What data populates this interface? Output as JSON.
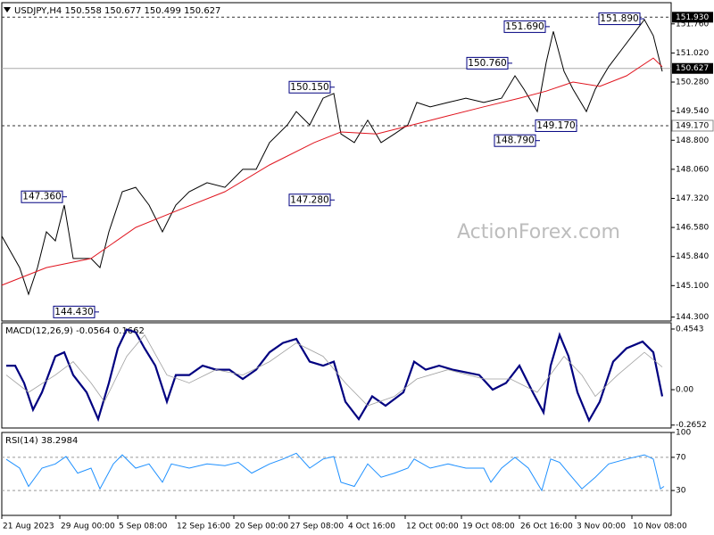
{
  "chart_data": [
    {
      "type": "line",
      "title": "USDJPY,H4  150.558 150.677 150.499 150.627",
      "watermark": "ActionForex.com",
      "xlim": [
        0,
        150
      ],
      "ylim": [
        144.2,
        152.3
      ],
      "yticks": [
        {
          "value": 151.76,
          "label": "151.760"
        },
        {
          "value": 151.02,
          "label": "151.020"
        },
        {
          "value": 150.28,
          "label": "150.280"
        },
        {
          "value": 149.54,
          "label": "149.540"
        },
        {
          "value": 148.8,
          "label": "148.800"
        },
        {
          "value": 148.06,
          "label": "148.060"
        },
        {
          "value": 147.32,
          "label": "147.320"
        },
        {
          "value": 146.58,
          "label": "146.580"
        },
        {
          "value": 145.84,
          "label": "145.840"
        },
        {
          "value": 145.1,
          "label": "145.100"
        },
        {
          "value": 144.3,
          "label": "144.300"
        }
      ],
      "series": [
        {
          "color": "#000000",
          "style": "solid",
          "x": [
            0,
            4,
            6,
            8,
            10,
            12,
            14,
            16,
            20,
            22,
            24,
            27,
            30,
            33,
            36,
            39,
            42,
            46,
            50,
            54,
            57,
            60,
            64,
            66,
            69,
            72,
            74.4,
            76,
            79,
            82,
            85,
            88,
            91,
            93,
            96,
            100,
            104,
            108,
            112,
            115,
            117,
            120,
            122,
            123.6,
            126,
            128,
            131,
            133,
            136,
            139,
            142,
            144,
            146,
            148
          ],
          "values": [
            146.36,
            145.56,
            144.88,
            145.56,
            146.47,
            146.24,
            147.15,
            145.79,
            145.79,
            145.56,
            146.47,
            147.49,
            147.6,
            147.15,
            146.47,
            147.15,
            147.49,
            147.72,
            147.6,
            148.06,
            148.06,
            148.74,
            149.19,
            149.53,
            149.19,
            149.87,
            149.99,
            148.96,
            148.74,
            149.31,
            148.74,
            148.96,
            149.19,
            149.76,
            149.65,
            149.76,
            149.87,
            149.76,
            149.87,
            150.44,
            150.1,
            149.53,
            150.78,
            151.57,
            150.55,
            150.1,
            149.53,
            150.1,
            150.67,
            151.12,
            151.57,
            151.87,
            151.46,
            150.55
          ]
        },
        {
          "color": "#e0141e",
          "style": "solid",
          "x": [
            0,
            10,
            20,
            30,
            40,
            50,
            60,
            70,
            76,
            84,
            92,
            100,
            108,
            116,
            122,
            128,
            134,
            140,
            146,
            148
          ],
          "values": [
            145.11,
            145.56,
            145.79,
            146.58,
            147.04,
            147.49,
            148.17,
            148.74,
            149.01,
            148.96,
            149.19,
            149.42,
            149.65,
            149.87,
            150.05,
            150.28,
            150.17,
            150.44,
            150.89,
            150.67
          ]
        }
      ],
      "annotations": [
        {
          "x": 14.6,
          "value": 147.36,
          "label": "147.360"
        },
        {
          "x": 21.8,
          "value": 144.43,
          "label": "144.430"
        },
        {
          "x": 74.6,
          "value": 150.15,
          "label": "150.150"
        },
        {
          "x": 74.6,
          "value": 147.28,
          "label": "147.280"
        },
        {
          "x": 114.4,
          "value": 150.76,
          "label": "150.760"
        },
        {
          "x": 122.8,
          "value": 151.69,
          "label": "151.690"
        },
        {
          "x": 120.6,
          "value": 148.79,
          "label": "148.790"
        },
        {
          "x": 119.6,
          "value": 149.17,
          "label": "149.170"
        },
        {
          "x": 144,
          "value": 151.89,
          "label": "151.890"
        }
      ],
      "markers": [
        {
          "value": 151.93,
          "label": "151.930",
          "line": "dashed",
          "style": "dark"
        },
        {
          "value": 150.627,
          "label": "150.627",
          "line": "solid",
          "style": "dark"
        },
        {
          "value": 149.17,
          "label": "149.170",
          "line": "dashed",
          "style": "light"
        }
      ]
    },
    {
      "type": "line",
      "title": "MACD(12,26,9) -0.0564 0.1662",
      "xlim": [
        0,
        150
      ],
      "ylim": [
        -0.287,
        0.501
      ],
      "yticks": [
        0.4543,
        {
          "value": 0,
          "label": "0.00"
        },
        -0.2652
      ],
      "series": [
        {
          "color": "#000080",
          "style": "thick",
          "x": [
            1,
            3,
            5,
            7,
            9,
            12,
            14,
            16,
            19,
            21.6,
            24,
            26,
            28,
            30,
            32,
            34.4,
            37,
            39,
            42,
            45,
            48,
            51,
            54,
            57,
            60,
            63,
            66,
            69,
            72,
            74.4,
            77,
            80,
            83,
            86,
            90,
            92.4,
            95,
            98,
            101,
            104,
            107,
            110,
            113,
            116,
            119,
            121.4,
            123,
            125,
            127,
            129,
            131.6,
            134,
            137,
            140,
            143.6,
            146,
            148
          ],
          "values": [
            0.18,
            0.18,
            0.05,
            -0.15,
            -0.02,
            0.25,
            0.28,
            0.11,
            -0.02,
            -0.22,
            0.05,
            0.31,
            0.45,
            0.43,
            0.31,
            0.18,
            -0.09,
            0.11,
            0.11,
            0.18,
            0.15,
            0.15,
            0.08,
            0.15,
            0.28,
            0.35,
            0.38,
            0.21,
            0.18,
            0.21,
            -0.09,
            -0.22,
            -0.05,
            -0.12,
            -0.02,
            0.21,
            0.15,
            0.18,
            0.15,
            0.13,
            0.11,
            0,
            0.05,
            0.18,
            -0.02,
            -0.17,
            0.18,
            0.41,
            0.25,
            -0.02,
            -0.23,
            -0.09,
            0.21,
            0.31,
            0.36,
            0.28,
            -0.05
          ]
        },
        {
          "color": "#a0a0a0",
          "style": "thin",
          "x": [
            1,
            6,
            12,
            16,
            20,
            23,
            28,
            32,
            37,
            42,
            48,
            54,
            60,
            66,
            72,
            77,
            82,
            88,
            93,
            100,
            108,
            114,
            120,
            126,
            130,
            133,
            138,
            144,
            148
          ],
          "values": [
            0.11,
            -0.02,
            0.11,
            0.21,
            0.05,
            -0.09,
            0.25,
            0.41,
            0.11,
            0.05,
            0.15,
            0.11,
            0.21,
            0.35,
            0.25,
            0.05,
            -0.12,
            -0.05,
            0.08,
            0.15,
            0.08,
            0.08,
            -0.02,
            0.25,
            0.11,
            -0.05,
            0.11,
            0.28,
            0.17
          ]
        }
      ]
    },
    {
      "type": "line",
      "title": "RSI(14) 38.2984",
      "xlim": [
        0,
        150
      ],
      "ylim": [
        0,
        100
      ],
      "yticks": [
        100,
        70,
        30
      ],
      "levels": [
        70,
        30
      ],
      "xticks": [
        {
          "value": 0,
          "label": "21 Aug 2023"
        },
        {
          "value": 13,
          "label": "29 Aug 00:00"
        },
        {
          "value": 26,
          "label": "5 Sep 08:00"
        },
        {
          "value": 39,
          "label": "12 Sep 16:00"
        },
        {
          "value": 52,
          "label": "20 Sep 00:00"
        },
        {
          "value": 64.4,
          "label": "27 Sep 08:00"
        },
        {
          "value": 77.4,
          "label": "4 Oct 16:00"
        },
        {
          "value": 90.4,
          "label": "12 Oct 00:00"
        },
        {
          "value": 103,
          "label": "19 Oct 08:00"
        },
        {
          "value": 116,
          "label": "26 Oct 16:00"
        },
        {
          "value": 128.6,
          "label": "3 Nov 00:00"
        },
        {
          "value": 141.2,
          "label": "10 Nov 08:00"
        }
      ],
      "series": [
        {
          "color": "#1e90ff",
          "style": "solid",
          "x": [
            1,
            4,
            6,
            9,
            12,
            14.4,
            17,
            20,
            22,
            25,
            27,
            30,
            33,
            36,
            38,
            42,
            46,
            50,
            53,
            56,
            60,
            63,
            66,
            69,
            72,
            74.4,
            76,
            79,
            82,
            85,
            88,
            91,
            92.4,
            96,
            100,
            104,
            108,
            109.6,
            112,
            115,
            118,
            121,
            123,
            125,
            127,
            130,
            133,
            136,
            140,
            144,
            146,
            147.6,
            148.4
          ],
          "values": [
            67.6,
            57,
            35,
            57,
            62,
            71,
            51,
            57,
            32,
            62,
            73,
            57,
            62,
            40,
            62,
            57,
            62,
            60,
            64,
            51,
            62,
            68,
            75,
            57,
            68,
            71,
            40,
            35,
            62,
            46,
            51,
            57,
            68,
            57,
            62,
            57,
            57,
            40,
            57,
            70,
            57,
            30,
            68,
            64,
            51,
            32,
            46,
            62,
            68,
            73,
            68,
            32,
            35
          ]
        }
      ]
    }
  ]
}
